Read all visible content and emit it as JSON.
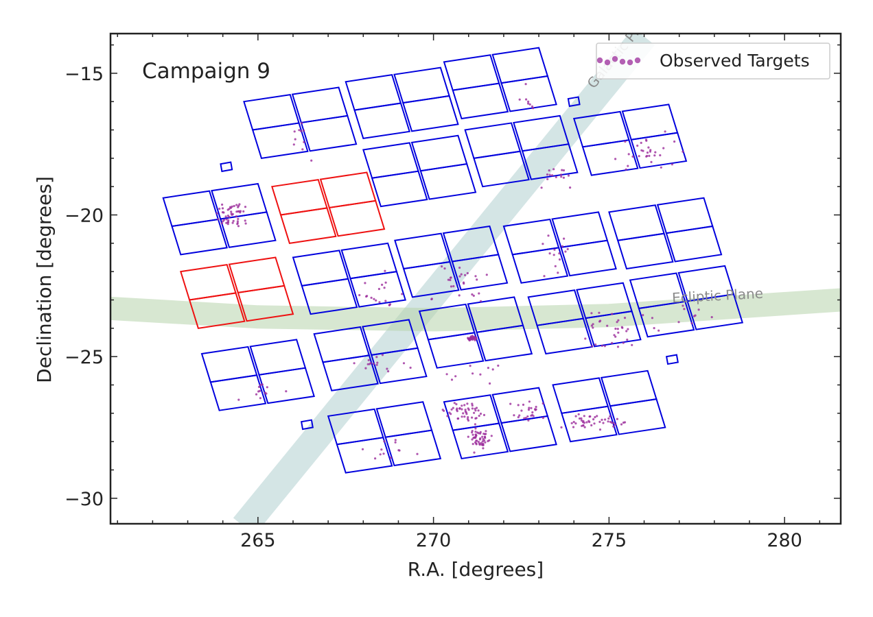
{
  "chart_data": {
    "type": "scatter",
    "title": "Campaign 9",
    "xlabel": "R.A. [degrees]",
    "ylabel": "Declination [degrees]",
    "xlim": [
      260.8,
      281.6
    ],
    "ylim": [
      -30.9,
      -13.6
    ],
    "xticks": [
      265,
      270,
      275,
      280
    ],
    "yticks": [
      -30,
      -25,
      -20,
      -15
    ],
    "xtick_labels": [
      "265",
      "270",
      "275",
      "280"
    ],
    "ytick_labels": [
      "−30",
      "−25",
      "−20",
      "−15"
    ],
    "legend": {
      "location": "top-right",
      "entries": [
        "Observed Targets"
      ]
    },
    "grid": false,
    "annotations": [
      "Galactic Plane",
      "Ecliptic Plane"
    ],
    "colors": {
      "ccd_active": "#0000dd",
      "ccd_failed": "#ee1111",
      "targets": "#9b2c9b",
      "galactic_plane": "#a9cccc",
      "ecliptic_plane": "#b6d4ac"
    },
    "galactic_plane": {
      "label": "Galactic Plane",
      "path": [
        [
          264.6,
          -31.0
        ],
        [
          276.0,
          -13.7
        ]
      ]
    },
    "ecliptic_plane": {
      "label": "Ecliptic Plane",
      "path": [
        [
          260.8,
          -23.3
        ],
        [
          265.0,
          -23.6
        ],
        [
          270.0,
          -23.7
        ],
        [
          275.0,
          -23.55
        ],
        [
          281.6,
          -23.0
        ]
      ]
    },
    "modules": [
      {
        "status": "active",
        "corners": [
          [
            264.6,
            -16.0
          ],
          [
            267.3,
            -15.5
          ],
          [
            267.8,
            -17.5
          ],
          [
            265.1,
            -18.0
          ]
        ]
      },
      {
        "status": "active",
        "corners": [
          [
            267.5,
            -15.3
          ],
          [
            270.2,
            -14.8
          ],
          [
            270.7,
            -16.8
          ],
          [
            268.0,
            -17.3
          ]
        ]
      },
      {
        "status": "active",
        "corners": [
          [
            270.3,
            -14.6
          ],
          [
            273.0,
            -14.1
          ],
          [
            273.5,
            -16.1
          ],
          [
            270.8,
            -16.6
          ]
        ]
      },
      {
        "status": "active",
        "corners": [
          [
            262.3,
            -19.4
          ],
          [
            265.0,
            -18.9
          ],
          [
            265.5,
            -20.9
          ],
          [
            262.8,
            -21.4
          ]
        ]
      },
      {
        "status": "failed",
        "corners": [
          [
            265.4,
            -19.0
          ],
          [
            268.1,
            -18.5
          ],
          [
            268.6,
            -20.5
          ],
          [
            265.9,
            -21.0
          ]
        ]
      },
      {
        "status": "active",
        "corners": [
          [
            268.0,
            -17.7
          ],
          [
            270.7,
            -17.2
          ],
          [
            271.2,
            -19.2
          ],
          [
            268.5,
            -19.7
          ]
        ]
      },
      {
        "status": "active",
        "corners": [
          [
            270.9,
            -17.0
          ],
          [
            273.6,
            -16.5
          ],
          [
            274.1,
            -18.5
          ],
          [
            271.4,
            -19.0
          ]
        ]
      },
      {
        "status": "active",
        "corners": [
          [
            274.0,
            -16.6
          ],
          [
            276.7,
            -16.1
          ],
          [
            277.2,
            -18.1
          ],
          [
            274.5,
            -18.6
          ]
        ]
      },
      {
        "status": "failed",
        "corners": [
          [
            262.8,
            -22.0
          ],
          [
            265.5,
            -21.5
          ],
          [
            266.0,
            -23.5
          ],
          [
            263.3,
            -24.0
          ]
        ]
      },
      {
        "status": "active",
        "corners": [
          [
            266.0,
            -21.5
          ],
          [
            268.7,
            -21.0
          ],
          [
            269.2,
            -23.0
          ],
          [
            266.5,
            -23.5
          ]
        ]
      },
      {
        "status": "active",
        "corners": [
          [
            268.9,
            -20.9
          ],
          [
            271.6,
            -20.4
          ],
          [
            272.1,
            -22.4
          ],
          [
            269.4,
            -22.9
          ]
        ]
      },
      {
        "status": "active",
        "corners": [
          [
            272.0,
            -20.4
          ],
          [
            274.7,
            -19.9
          ],
          [
            275.2,
            -21.9
          ],
          [
            272.5,
            -22.4
          ]
        ]
      },
      {
        "status": "active",
        "corners": [
          [
            275.0,
            -19.9
          ],
          [
            277.7,
            -19.4
          ],
          [
            278.2,
            -21.4
          ],
          [
            275.5,
            -21.9
          ]
        ]
      },
      {
        "status": "active",
        "corners": [
          [
            263.4,
            -24.9
          ],
          [
            266.1,
            -24.4
          ],
          [
            266.6,
            -26.4
          ],
          [
            263.9,
            -26.9
          ]
        ]
      },
      {
        "status": "active",
        "corners": [
          [
            266.6,
            -24.2
          ],
          [
            269.3,
            -23.7
          ],
          [
            269.8,
            -25.7
          ],
          [
            267.1,
            -26.2
          ]
        ]
      },
      {
        "status": "active",
        "corners": [
          [
            269.6,
            -23.4
          ],
          [
            272.3,
            -22.9
          ],
          [
            272.8,
            -24.9
          ],
          [
            270.1,
            -25.4
          ]
        ]
      },
      {
        "status": "active",
        "corners": [
          [
            272.7,
            -22.9
          ],
          [
            275.4,
            -22.4
          ],
          [
            275.9,
            -24.4
          ],
          [
            273.2,
            -24.9
          ]
        ]
      },
      {
        "status": "active",
        "corners": [
          [
            275.6,
            -22.3
          ],
          [
            278.3,
            -21.8
          ],
          [
            278.8,
            -23.8
          ],
          [
            276.1,
            -24.3
          ]
        ]
      },
      {
        "status": "active",
        "corners": [
          [
            267.0,
            -27.1
          ],
          [
            269.7,
            -26.6
          ],
          [
            270.2,
            -28.6
          ],
          [
            267.5,
            -29.1
          ]
        ]
      },
      {
        "status": "active",
        "corners": [
          [
            270.3,
            -26.6
          ],
          [
            273.0,
            -26.1
          ],
          [
            273.5,
            -28.1
          ],
          [
            270.8,
            -28.6
          ]
        ]
      },
      {
        "status": "active",
        "corners": [
          [
            273.4,
            -26.0
          ],
          [
            276.1,
            -25.5
          ],
          [
            276.6,
            -27.5
          ],
          [
            273.9,
            -28.0
          ]
        ]
      }
    ],
    "small_squares": [
      {
        "center": [
          274.0,
          -16.0
        ]
      },
      {
        "center": [
          264.1,
          -18.3
        ]
      },
      {
        "center": [
          276.8,
          -25.1
        ]
      },
      {
        "center": [
          266.4,
          -27.4
        ]
      }
    ],
    "targets": {
      "name": "Observed Targets",
      "clusters": [
        {
          "center": [
            271.1,
            -24.35
          ],
          "spread": [
            0.15,
            0.07
          ],
          "count": 40
        },
        {
          "center": [
            271.3,
            -27.9
          ],
          "spread": [
            0.3,
            0.5
          ],
          "count": 55
        },
        {
          "center": [
            270.9,
            -26.9
          ],
          "spread": [
            0.6,
            0.4
          ],
          "count": 45
        },
        {
          "center": [
            274.6,
            -27.3
          ],
          "spread": [
            0.9,
            0.35
          ],
          "count": 45
        },
        {
          "center": [
            264.3,
            -20.0
          ],
          "spread": [
            0.55,
            0.6
          ],
          "count": 50
        },
        {
          "center": [
            272.7,
            -27.0
          ],
          "spread": [
            0.6,
            0.5
          ],
          "count": 25
        },
        {
          "center": [
            275.3,
            -24.1
          ],
          "spread": [
            1.4,
            0.9
          ],
          "count": 35
        },
        {
          "center": [
            276.0,
            -17.7
          ],
          "spread": [
            1.0,
            0.9
          ],
          "count": 30
        },
        {
          "center": [
            273.6,
            -18.6
          ],
          "spread": [
            0.7,
            0.6
          ],
          "count": 15
        },
        {
          "center": [
            270.7,
            -22.3
          ],
          "spread": [
            1.0,
            0.8
          ],
          "count": 25
        },
        {
          "center": [
            266.0,
            -17.3
          ],
          "spread": [
            1.0,
            0.7
          ],
          "count": 10
        },
        {
          "center": [
            272.6,
            -16.0
          ],
          "spread": [
            0.5,
            0.5
          ],
          "count": 8
        },
        {
          "center": [
            273.6,
            -21.4
          ],
          "spread": [
            0.6,
            0.7
          ],
          "count": 14
        },
        {
          "center": [
            268.6,
            -22.8
          ],
          "spread": [
            0.9,
            0.8
          ],
          "count": 18
        },
        {
          "center": [
            268.3,
            -25.3
          ],
          "spread": [
            1.2,
            0.5
          ],
          "count": 15
        },
        {
          "center": [
            265.2,
            -26.2
          ],
          "spread": [
            0.8,
            0.5
          ],
          "count": 12
        },
        {
          "center": [
            268.7,
            -28.4
          ],
          "spread": [
            1.0,
            0.6
          ],
          "count": 12
        },
        {
          "center": [
            271.3,
            -25.6
          ],
          "spread": [
            1.0,
            0.4
          ],
          "count": 10
        },
        {
          "center": [
            277.6,
            -23.3
          ],
          "spread": [
            0.7,
            0.6
          ],
          "count": 8
        }
      ]
    }
  }
}
